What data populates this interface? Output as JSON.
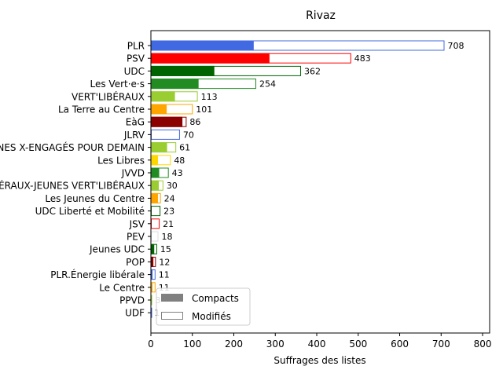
{
  "chart_data": {
    "type": "bar",
    "orientation": "horizontal",
    "title": "Rivaz",
    "xlabel": "Suffrages des listes",
    "ylabel": "",
    "xlim": [
      0,
      817
    ],
    "xticks": [
      0,
      100,
      200,
      300,
      400,
      500,
      600,
      700,
      800
    ],
    "legend": {
      "position": "lower-left",
      "entries": [
        {
          "label": "Compacts",
          "style": "filled",
          "color": "#808080"
        },
        {
          "label": "Modifiés",
          "style": "outline",
          "color": "#808080"
        }
      ]
    },
    "bars": [
      {
        "name": "PLR",
        "total": 708,
        "compact": 248,
        "color": "#4169e1",
        "label": "708"
      },
      {
        "name": "PSV",
        "total": 483,
        "compact": 286,
        "color": "#ff0000",
        "label": "483"
      },
      {
        "name": "UDC",
        "total": 362,
        "compact": 153,
        "color": "#006400",
        "label": "362"
      },
      {
        "name": "Les Vert·e·s",
        "total": 254,
        "compact": 115,
        "color": "#228b22",
        "label": "254"
      },
      {
        "name": "VERT'LIBÉRAUX",
        "total": 113,
        "compact": 58,
        "color": "#9acd32",
        "label": "113"
      },
      {
        "name": "La Terre au Centre",
        "total": 101,
        "compact": 38,
        "color": "#ffa500",
        "label": "101"
      },
      {
        "name": "EàG",
        "total": 86,
        "compact": 76,
        "color": "#8b0000",
        "label": "86"
      },
      {
        "name": "JLRV",
        "total": 70,
        "compact": 0,
        "color": "#4169e1",
        "label": "70"
      },
      {
        "name": "JEUNES X-ENGAGÉS POUR DEMAIN",
        "total": 61,
        "compact": 39,
        "color": "#9acd32",
        "label": "61"
      },
      {
        "name": "Les Libres",
        "total": 48,
        "compact": 17,
        "color": "#ffd700",
        "label": "48"
      },
      {
        "name": "JVVD",
        "total": 43,
        "compact": 20,
        "color": "#228b22",
        "label": "43"
      },
      {
        "name": "JEUNES VERT'LIBÉRAUX-JEUNES VERT'LIBÉRAUX",
        "total": 30,
        "compact": 19,
        "color": "#9acd32",
        "label": "30"
      },
      {
        "name": "Les Jeunes du Centre",
        "total": 24,
        "compact": 17,
        "color": "#ffa500",
        "label": "24"
      },
      {
        "name": "UDC Liberté et Mobilité",
        "total": 23,
        "compact": 0,
        "color": "#006400",
        "label": "23"
      },
      {
        "name": "JSV",
        "total": 21,
        "compact": 0,
        "color": "#ff0000",
        "label": "21"
      },
      {
        "name": "PEV",
        "total": 18,
        "compact": 0,
        "color": "#dddddd",
        "label": "18"
      },
      {
        "name": "Jeunes UDC",
        "total": 15,
        "compact": 8,
        "color": "#006400",
        "label": "15"
      },
      {
        "name": "POP",
        "total": 12,
        "compact": 6,
        "color": "#8b0000",
        "label": "12"
      },
      {
        "name": "PLR.Énergie libérale",
        "total": 11,
        "compact": 4,
        "color": "#4169e1",
        "label": "11"
      },
      {
        "name": "Le Centre",
        "total": 11,
        "compact": 4,
        "color": "#ffa500",
        "label": "11"
      },
      {
        "name": "PPVD",
        "total": 3,
        "compact": 0,
        "color": "#9acd32",
        "label": "3"
      },
      {
        "name": "UDF",
        "total": 1,
        "compact": 0,
        "color": "#4169e1",
        "label": "1"
      }
    ]
  }
}
